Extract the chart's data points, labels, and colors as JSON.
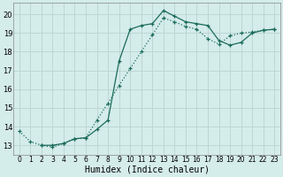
{
  "xlabel": "Humidex (Indice chaleur)",
  "background_color": "#d4ecea",
  "grid_color": "#b8d4d0",
  "line_color": "#1a6b5a",
  "xlim": [
    -0.5,
    23.5
  ],
  "ylim": [
    12.5,
    20.6
  ],
  "xticks": [
    0,
    1,
    2,
    3,
    4,
    5,
    6,
    7,
    8,
    9,
    10,
    11,
    12,
    13,
    14,
    15,
    16,
    17,
    18,
    19,
    20,
    21,
    22,
    23
  ],
  "yticks": [
    13,
    14,
    15,
    16,
    17,
    18,
    19,
    20
  ],
  "line_dotted_x": [
    0,
    1,
    2,
    3,
    4,
    5,
    6,
    7,
    8,
    9,
    10,
    11,
    12,
    13,
    14,
    15,
    16,
    17,
    18,
    19,
    20,
    21,
    22,
    23
  ],
  "line_dotted_y": [
    13.75,
    13.2,
    13.0,
    12.9,
    13.1,
    13.35,
    13.4,
    14.35,
    15.25,
    16.2,
    17.1,
    18.0,
    18.9,
    19.8,
    19.6,
    19.35,
    19.2,
    18.7,
    18.4,
    18.85,
    19.0,
    19.05,
    19.15,
    19.2
  ],
  "line_solid_x": [
    2,
    3,
    4,
    5,
    6,
    7,
    8,
    9,
    10,
    11,
    12,
    13,
    14,
    15,
    16,
    17,
    18,
    19,
    20,
    21,
    22,
    23
  ],
  "line_solid_y": [
    13.0,
    13.0,
    13.1,
    13.35,
    13.4,
    13.85,
    14.35,
    17.5,
    19.2,
    19.4,
    19.5,
    20.2,
    19.9,
    19.6,
    19.5,
    19.4,
    18.6,
    18.35,
    18.5,
    19.0,
    19.15,
    19.2
  ]
}
